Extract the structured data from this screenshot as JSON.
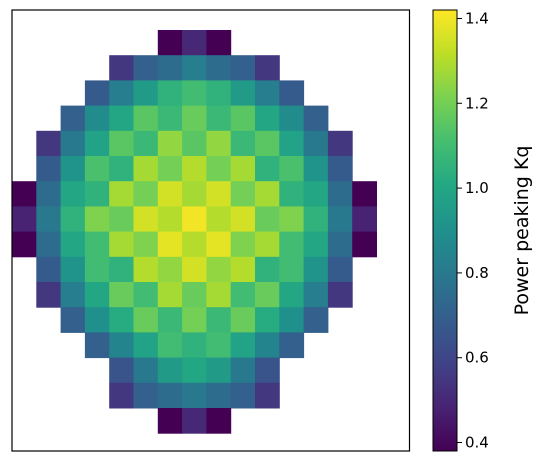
{
  "chart_data": {
    "type": "heatmap",
    "title": "",
    "xlabel": "",
    "ylabel": "",
    "colormap": "viridis",
    "colorbar": {
      "label": "Power peaking Kq",
      "vmin": 0.38,
      "vmax": 1.42,
      "ticks": [
        {
          "value": 0.4,
          "label": "0.4"
        },
        {
          "value": 0.6,
          "label": "0.6"
        },
        {
          "value": 0.8,
          "label": "0.8"
        },
        {
          "value": 1.0,
          "label": "1.0"
        },
        {
          "value": 1.2,
          "label": "1.2"
        },
        {
          "value": 1.4,
          "label": "1.4"
        }
      ]
    },
    "rows": 17,
    "cols": 15,
    "values": [
      [
        null,
        null,
        null,
        null,
        null,
        null,
        0.38,
        0.5,
        0.38,
        null,
        null,
        null,
        null,
        null,
        null
      ],
      [
        null,
        null,
        null,
        null,
        0.55,
        0.7,
        0.75,
        0.82,
        0.75,
        0.7,
        0.55,
        null,
        null,
        null,
        null
      ],
      [
        null,
        null,
        null,
        0.68,
        0.82,
        0.95,
        1.05,
        1.1,
        1.05,
        0.95,
        0.82,
        0.68,
        null,
        null,
        null
      ],
      [
        null,
        null,
        0.7,
        0.88,
        1.0,
        1.15,
        1.08,
        1.18,
        1.08,
        1.15,
        1.0,
        0.88,
        0.7,
        null,
        null
      ],
      [
        null,
        0.55,
        0.8,
        0.98,
        1.15,
        1.08,
        1.25,
        1.15,
        1.25,
        1.08,
        1.15,
        0.98,
        0.8,
        0.55,
        null
      ],
      [
        null,
        0.68,
        0.92,
        1.12,
        1.05,
        1.28,
        1.2,
        1.3,
        1.2,
        1.28,
        1.05,
        1.12,
        0.92,
        0.68,
        null
      ],
      [
        0.38,
        0.75,
        1.0,
        1.05,
        1.28,
        1.2,
        1.35,
        1.28,
        1.35,
        1.2,
        1.28,
        1.05,
        1.0,
        0.75,
        0.38
      ],
      [
        0.48,
        0.8,
        1.05,
        1.22,
        1.18,
        1.35,
        1.3,
        1.4,
        1.3,
        1.35,
        1.18,
        1.22,
        1.05,
        0.8,
        0.48
      ],
      [
        0.38,
        0.75,
        1.0,
        1.1,
        1.28,
        1.22,
        1.38,
        1.3,
        1.38,
        1.22,
        1.28,
        1.1,
        1.0,
        0.75,
        0.38
      ],
      [
        null,
        0.68,
        0.92,
        1.1,
        1.05,
        1.3,
        1.25,
        1.35,
        1.25,
        1.3,
        1.05,
        1.1,
        0.92,
        0.68,
        null
      ],
      [
        null,
        0.55,
        0.82,
        1.0,
        1.18,
        1.1,
        1.28,
        1.18,
        1.28,
        1.1,
        1.18,
        1.0,
        0.82,
        0.55,
        null
      ],
      [
        null,
        null,
        0.7,
        0.9,
        1.02,
        1.18,
        1.08,
        1.2,
        1.08,
        1.18,
        1.02,
        0.9,
        0.7,
        null,
        null
      ],
      [
        null,
        null,
        null,
        0.7,
        0.85,
        0.98,
        1.1,
        1.05,
        1.1,
        0.98,
        0.85,
        0.7,
        null,
        null,
        null
      ],
      [
        null,
        null,
        null,
        null,
        0.65,
        0.8,
        0.95,
        1.0,
        0.95,
        0.8,
        0.65,
        null,
        null,
        null,
        null
      ],
      [
        null,
        null,
        null,
        null,
        0.55,
        0.7,
        0.75,
        0.8,
        0.75,
        0.7,
        0.55,
        null,
        null,
        null,
        null
      ],
      [
        null,
        null,
        null,
        null,
        null,
        null,
        0.38,
        0.5,
        0.38,
        null,
        null,
        null,
        null,
        null,
        null
      ],
      [
        null,
        null,
        null,
        null,
        null,
        null,
        null,
        null,
        null,
        null,
        null,
        null,
        null,
        null,
        null
      ]
    ]
  }
}
